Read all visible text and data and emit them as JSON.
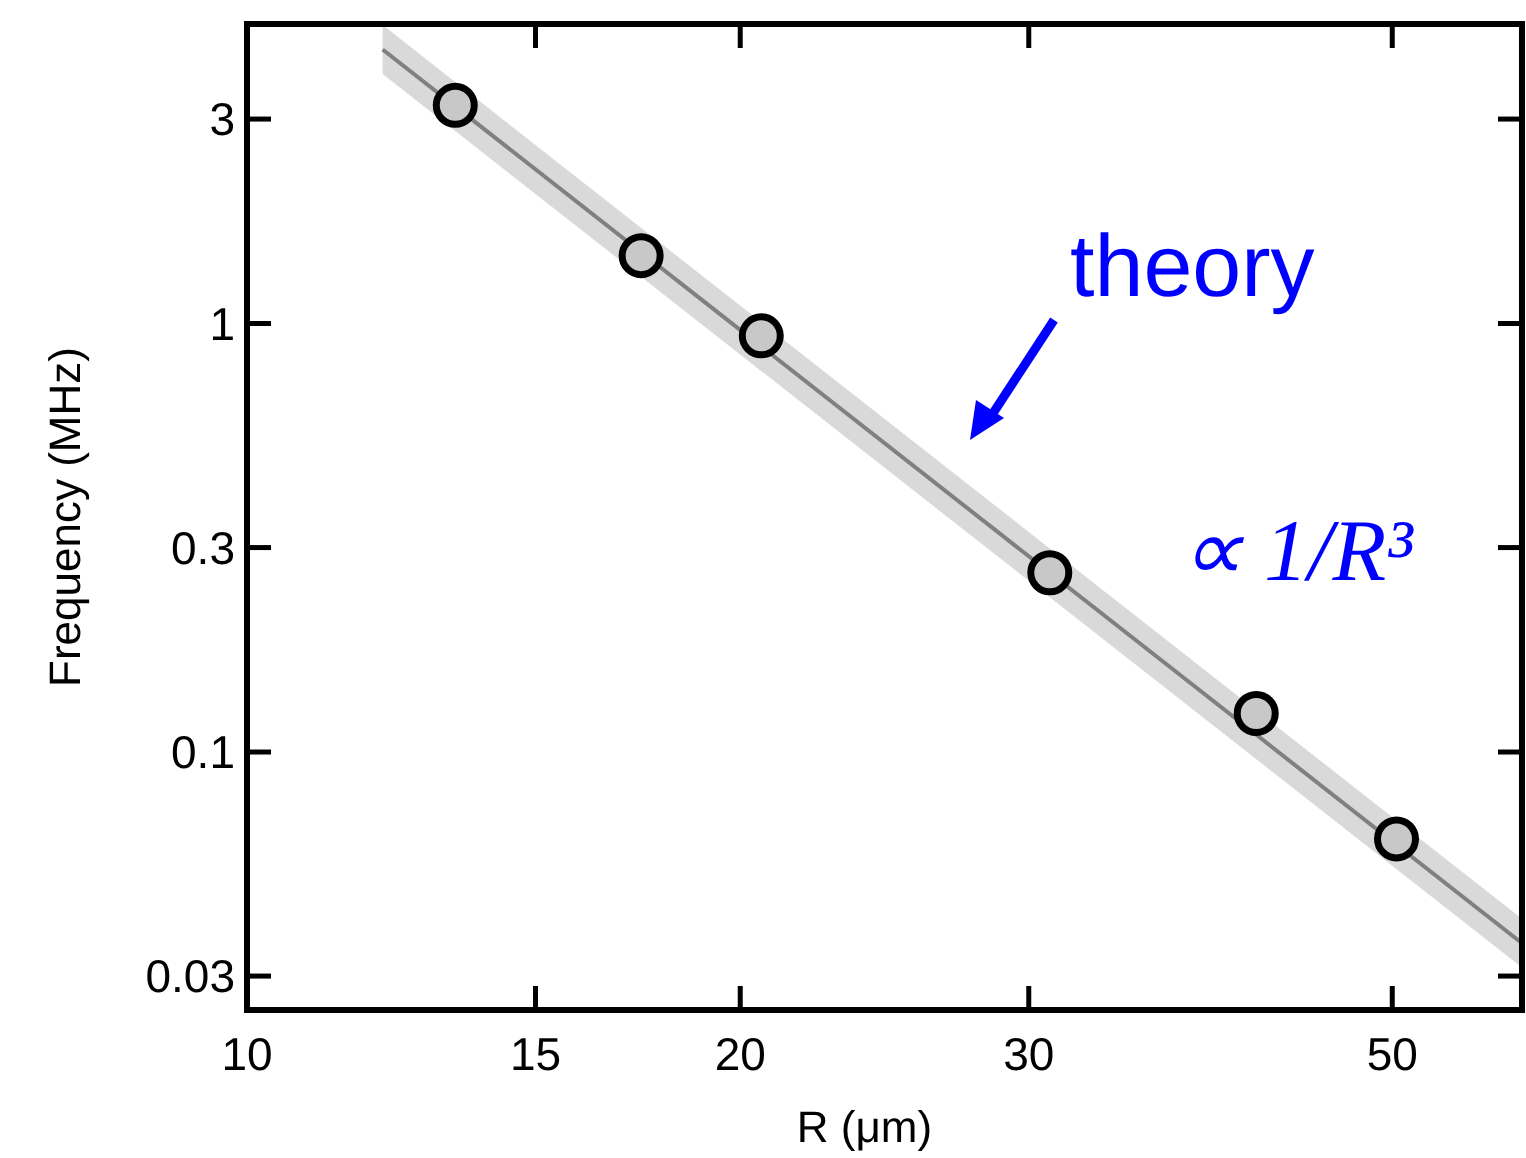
{
  "chart_data": {
    "type": "scatter",
    "xlabel": "R (μm)",
    "ylabel": "Frequency (MHz)",
    "log": "xy",
    "xlim": [
      10,
      60
    ],
    "xticks": [
      10,
      15,
      20,
      30,
      50
    ],
    "ylim": [
      0.025,
      5
    ],
    "yticks": [
      0.03,
      0.1,
      0.3,
      1,
      3
    ],
    "grid": false,
    "series": [
      {
        "type": "line",
        "color": "#808080",
        "x": [
          12.1,
          60
        ],
        "values": [
          4.36,
          0.0358
        ],
        "lower": [
          3.82,
          0.0314
        ],
        "upper": [
          4.97,
          0.0408
        ]
      },
      {
        "marker": "circle",
        "color": "#c8c8c8",
        "x": [
          13.4,
          17.4,
          20.6,
          30.9,
          41.3,
          50.3
        ],
        "values": [
          3.23,
          1.44,
          0.936,
          0.262,
          0.123,
          0.0627
        ]
      }
    ],
    "annotations": [
      "theory",
      "∝ 1/R³"
    ]
  }
}
